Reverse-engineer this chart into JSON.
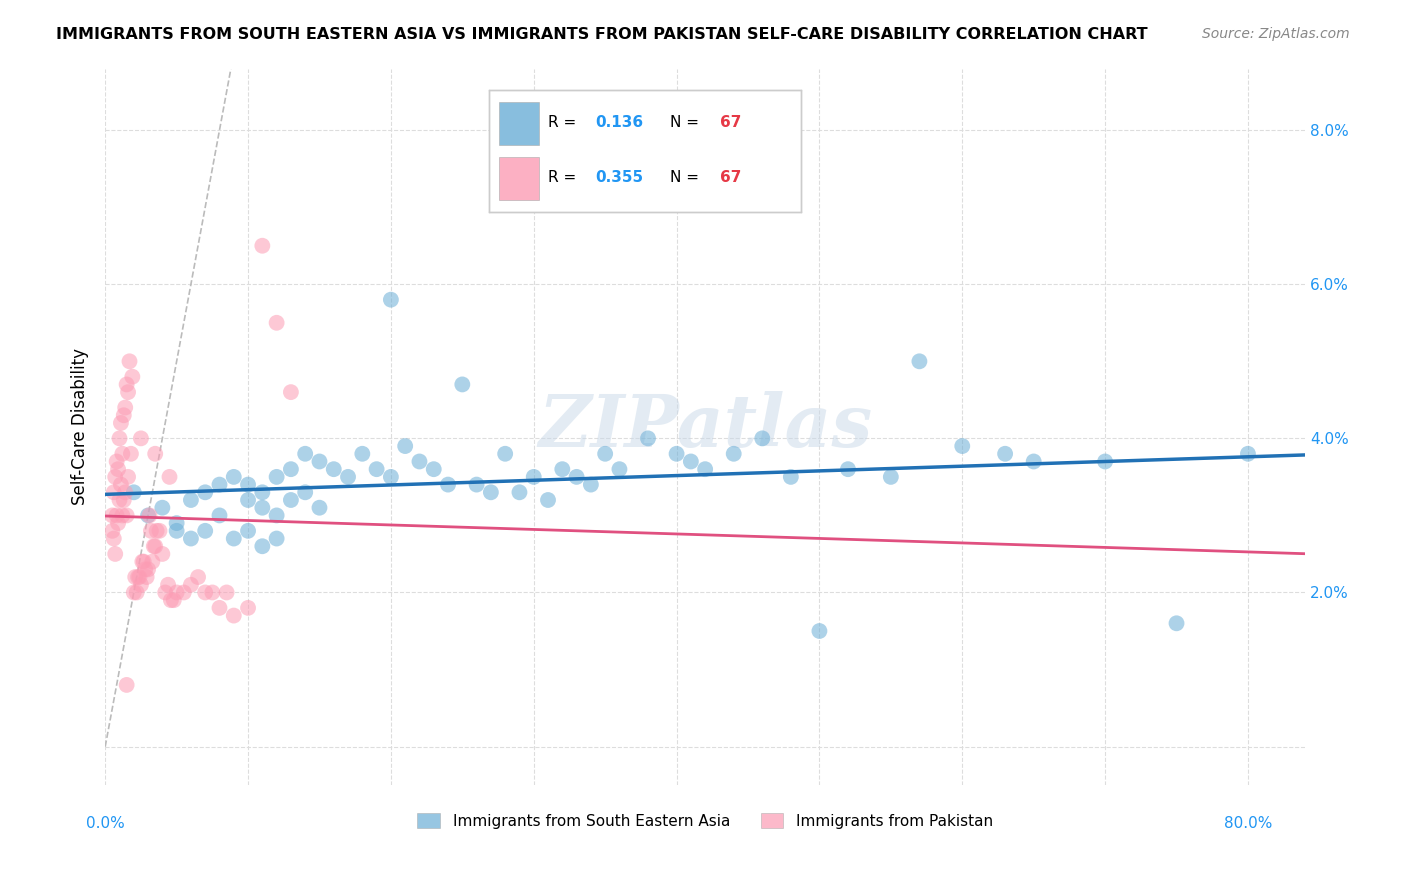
{
  "title": "IMMIGRANTS FROM SOUTH EASTERN ASIA VS IMMIGRANTS FROM PAKISTAN SELF-CARE DISABILITY CORRELATION CHART",
  "source": "Source: ZipAtlas.com",
  "ylabel": "Self-Care Disability",
  "y_tick_vals": [
    0.0,
    0.02,
    0.04,
    0.06,
    0.08
  ],
  "y_tick_labels": [
    "",
    "2.0%",
    "4.0%",
    "6.0%",
    "8.0%"
  ],
  "x_tick_vals": [
    0.0,
    0.1,
    0.2,
    0.3,
    0.4,
    0.5,
    0.6,
    0.7,
    0.8
  ],
  "xlim": [
    0.0,
    0.84
  ],
  "ylim": [
    -0.005,
    0.088
  ],
  "blue_color": "#6baed6",
  "blue_line_color": "#2171b5",
  "pink_color": "#fc9cb4",
  "pink_line_color": "#e05080",
  "diagonal_color": "#cccccc",
  "watermark": "ZIPatlas",
  "blue_scatter_x": [
    0.02,
    0.03,
    0.04,
    0.05,
    0.05,
    0.06,
    0.06,
    0.07,
    0.07,
    0.08,
    0.08,
    0.09,
    0.09,
    0.1,
    0.1,
    0.1,
    0.11,
    0.11,
    0.11,
    0.12,
    0.12,
    0.12,
    0.13,
    0.13,
    0.14,
    0.14,
    0.15,
    0.15,
    0.16,
    0.17,
    0.18,
    0.19,
    0.2,
    0.2,
    0.21,
    0.22,
    0.23,
    0.24,
    0.25,
    0.26,
    0.27,
    0.28,
    0.29,
    0.3,
    0.31,
    0.32,
    0.33,
    0.34,
    0.35,
    0.36,
    0.38,
    0.4,
    0.41,
    0.42,
    0.44,
    0.46,
    0.48,
    0.5,
    0.52,
    0.55,
    0.57,
    0.6,
    0.63,
    0.65,
    0.7,
    0.75,
    0.8
  ],
  "blue_scatter_y": [
    0.033,
    0.03,
    0.031,
    0.029,
    0.028,
    0.032,
    0.027,
    0.033,
    0.028,
    0.034,
    0.03,
    0.035,
    0.027,
    0.034,
    0.032,
    0.028,
    0.033,
    0.031,
    0.026,
    0.035,
    0.03,
    0.027,
    0.036,
    0.032,
    0.038,
    0.033,
    0.037,
    0.031,
    0.036,
    0.035,
    0.038,
    0.036,
    0.058,
    0.035,
    0.039,
    0.037,
    0.036,
    0.034,
    0.047,
    0.034,
    0.033,
    0.038,
    0.033,
    0.035,
    0.032,
    0.036,
    0.035,
    0.034,
    0.038,
    0.036,
    0.04,
    0.038,
    0.037,
    0.036,
    0.038,
    0.04,
    0.035,
    0.015,
    0.036,
    0.035,
    0.05,
    0.039,
    0.038,
    0.037,
    0.037,
    0.016,
    0.038
  ],
  "pink_scatter_x": [
    0.005,
    0.005,
    0.006,
    0.006,
    0.007,
    0.007,
    0.008,
    0.008,
    0.009,
    0.009,
    0.01,
    0.01,
    0.011,
    0.011,
    0.012,
    0.012,
    0.013,
    0.013,
    0.014,
    0.014,
    0.015,
    0.015,
    0.016,
    0.016,
    0.017,
    0.018,
    0.019,
    0.02,
    0.021,
    0.022,
    0.023,
    0.024,
    0.025,
    0.026,
    0.027,
    0.028,
    0.029,
    0.03,
    0.031,
    0.032,
    0.033,
    0.034,
    0.035,
    0.036,
    0.038,
    0.04,
    0.042,
    0.044,
    0.046,
    0.048,
    0.05,
    0.055,
    0.06,
    0.065,
    0.07,
    0.075,
    0.08,
    0.085,
    0.09,
    0.1,
    0.11,
    0.12,
    0.13,
    0.015,
    0.025,
    0.035,
    0.045
  ],
  "pink_scatter_y": [
    0.03,
    0.028,
    0.033,
    0.027,
    0.035,
    0.025,
    0.037,
    0.03,
    0.036,
    0.029,
    0.04,
    0.032,
    0.042,
    0.034,
    0.038,
    0.03,
    0.043,
    0.032,
    0.044,
    0.033,
    0.047,
    0.03,
    0.046,
    0.035,
    0.05,
    0.038,
    0.048,
    0.02,
    0.022,
    0.02,
    0.022,
    0.022,
    0.021,
    0.024,
    0.024,
    0.023,
    0.022,
    0.023,
    0.03,
    0.028,
    0.024,
    0.026,
    0.026,
    0.028,
    0.028,
    0.025,
    0.02,
    0.021,
    0.019,
    0.019,
    0.02,
    0.02,
    0.021,
    0.022,
    0.02,
    0.02,
    0.018,
    0.02,
    0.017,
    0.018,
    0.065,
    0.055,
    0.046,
    0.008,
    0.04,
    0.038,
    0.035
  ]
}
